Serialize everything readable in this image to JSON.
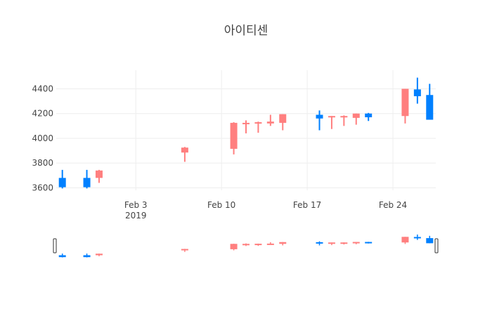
{
  "chart_data": {
    "type": "candlestick",
    "title": "아이티센",
    "xlabel": "",
    "ylabel": "",
    "grid": true,
    "legend": "none",
    "x_range": [
      "2019-01-28",
      "2019-02-28"
    ],
    "y_range": [
      3580,
      4550
    ],
    "y_ticks": [
      3600,
      3800,
      4000,
      4200,
      4400
    ],
    "y_tick_labels": [
      "3600",
      "3800",
      "4000",
      "4200",
      "4400"
    ],
    "x_ticks": [
      "2019-02-03",
      "2019-02-10",
      "2019-02-17",
      "2019-02-24"
    ],
    "x_tick_labels": [
      "Feb 3",
      "Feb 10",
      "Feb 17",
      "Feb 24"
    ],
    "x_tick_year": "2019",
    "range_slider": true,
    "colors": {
      "increasing": "#ff7f7f",
      "decreasing": "#0080ff"
    },
    "candles": [
      {
        "date": "2019-01-28",
        "open": 3680,
        "high": 3745,
        "low": 3595,
        "close": 3605
      },
      {
        "date": "2019-01-30",
        "open": 3680,
        "high": 3745,
        "low": 3595,
        "close": 3605
      },
      {
        "date": "2019-01-31",
        "open": 3680,
        "high": 3745,
        "low": 3640,
        "close": 3740
      },
      {
        "date": "2019-02-07",
        "open": 3885,
        "high": 3930,
        "low": 3810,
        "close": 3925
      },
      {
        "date": "2019-02-11",
        "open": 3915,
        "high": 4130,
        "low": 3870,
        "close": 4125
      },
      {
        "date": "2019-02-12",
        "open": 4115,
        "high": 4145,
        "low": 4040,
        "close": 4125
      },
      {
        "date": "2019-02-13",
        "open": 4120,
        "high": 4135,
        "low": 4045,
        "close": 4130
      },
      {
        "date": "2019-02-14",
        "open": 4120,
        "high": 4190,
        "low": 4100,
        "close": 4135
      },
      {
        "date": "2019-02-15",
        "open": 4125,
        "high": 4195,
        "low": 4065,
        "close": 4195
      },
      {
        "date": "2019-02-18",
        "open": 4190,
        "high": 4225,
        "low": 4065,
        "close": 4160
      },
      {
        "date": "2019-02-19",
        "open": 4170,
        "high": 4180,
        "low": 4075,
        "close": 4180
      },
      {
        "date": "2019-02-20",
        "open": 4170,
        "high": 4185,
        "low": 4100,
        "close": 4180
      },
      {
        "date": "2019-02-21",
        "open": 4165,
        "high": 4200,
        "low": 4110,
        "close": 4200
      },
      {
        "date": "2019-02-22",
        "open": 4200,
        "high": 4205,
        "low": 4140,
        "close": 4170
      },
      {
        "date": "2019-02-25",
        "open": 4180,
        "high": 4400,
        "low": 4120,
        "close": 4400
      },
      {
        "date": "2019-02-26",
        "open": 4395,
        "high": 4490,
        "low": 4280,
        "close": 4340
      },
      {
        "date": "2019-02-27",
        "open": 4350,
        "high": 4440,
        "low": 4150,
        "close": 4150
      }
    ]
  }
}
